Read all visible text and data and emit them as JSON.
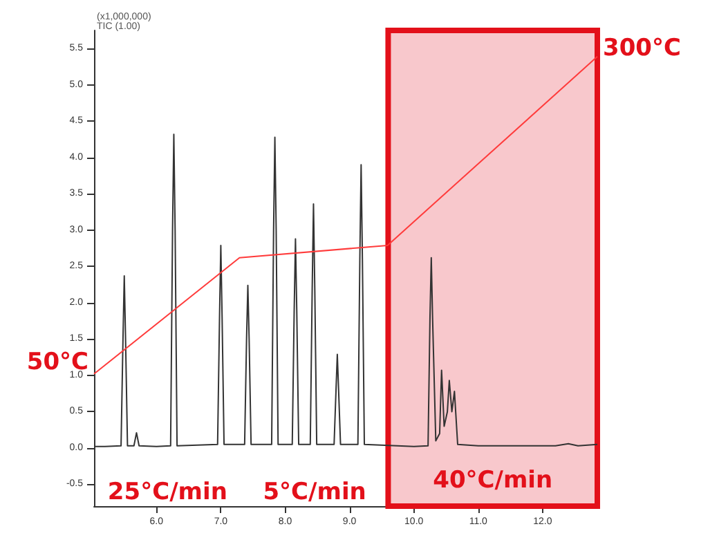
{
  "chart_data": {
    "type": "line",
    "xlim": [
      5.03,
      12.85
    ],
    "ylim": [
      -0.8,
      5.75
    ],
    "xticks": [
      {
        "value": 6,
        "label": "6.0"
      },
      {
        "value": 7,
        "label": "7.0"
      },
      {
        "value": 8,
        "label": "8.0"
      },
      {
        "value": 9,
        "label": "9.0"
      },
      {
        "value": 10,
        "label": "10.0"
      },
      {
        "value": 11,
        "label": "11.0"
      },
      {
        "value": 12,
        "label": "12.0"
      }
    ],
    "yticks": [
      {
        "value": -0.5,
        "label": "-0.5"
      },
      {
        "value": 0,
        "label": "0.0"
      },
      {
        "value": 0.5,
        "label": "0.5"
      },
      {
        "value": 1,
        "label": "1.0"
      },
      {
        "value": 1.5,
        "label": "1.5"
      },
      {
        "value": 2,
        "label": "2.0"
      },
      {
        "value": 2.5,
        "label": "2.5"
      },
      {
        "value": 3,
        "label": "3.0"
      },
      {
        "value": 3.5,
        "label": "3.5"
      },
      {
        "value": 4,
        "label": "4.0"
      },
      {
        "value": 4.5,
        "label": "4.5"
      },
      {
        "value": 5,
        "label": "5.0"
      },
      {
        "value": 5.5,
        "label": "5.5"
      }
    ],
    "series": [
      {
        "color": "#333333",
        "x": [
          5.03,
          5.2,
          5.45,
          5.48,
          5.5,
          5.52,
          5.55,
          5.65,
          5.69,
          5.73,
          6.0,
          6.22,
          6.25,
          6.27,
          6.29,
          6.32,
          6.95,
          6.98,
          7.0,
          7.02,
          7.05,
          7.37,
          7.4,
          7.42,
          7.44,
          7.47,
          7.79,
          7.82,
          7.84,
          7.86,
          7.89,
          8.11,
          8.14,
          8.16,
          8.18,
          8.21,
          8.39,
          8.42,
          8.44,
          8.46,
          8.49,
          8.76,
          8.79,
          8.81,
          8.83,
          8.86,
          9.13,
          9.16,
          9.18,
          9.2,
          9.23,
          10.0,
          10.22,
          10.25,
          10.27,
          10.29,
          10.34,
          10.4,
          10.43,
          10.47,
          10.52,
          10.55,
          10.59,
          10.63,
          10.68,
          11.0,
          12.2,
          12.4,
          12.55,
          12.85
        ],
        "values": [
          0.02,
          0.02,
          0.03,
          1.5,
          2.37,
          1.5,
          0.03,
          0.03,
          0.21,
          0.03,
          0.02,
          0.03,
          3.0,
          4.32,
          3.0,
          0.03,
          0.05,
          1.8,
          2.79,
          1.8,
          0.05,
          0.05,
          1.5,
          2.24,
          1.5,
          0.05,
          0.05,
          3.0,
          4.28,
          3.0,
          0.05,
          0.05,
          1.9,
          2.88,
          1.9,
          0.05,
          0.05,
          2.2,
          3.36,
          2.2,
          0.05,
          0.05,
          0.8,
          1.29,
          0.8,
          0.05,
          0.05,
          2.6,
          3.9,
          2.6,
          0.05,
          0.02,
          0.03,
          1.8,
          2.62,
          1.8,
          0.1,
          0.2,
          1.07,
          0.3,
          0.5,
          0.93,
          0.5,
          0.78,
          0.05,
          0.03,
          0.03,
          0.06,
          0.03,
          0.05
        ]
      },
      {
        "color": "#ff3b3b",
        "x": [
          5.03,
          7.29,
          9.59,
          12.85
        ],
        "values": [
          1.02,
          2.62,
          2.79,
          5.39
        ]
      }
    ],
    "bands": [
      {
        "axis": "x",
        "from": 9.6,
        "to": 12.85,
        "label": "40°C/min",
        "color": "#f8c8cc"
      }
    ],
    "annotations": [
      "(x1,000,000)",
      "TIC (1.00)",
      {
        "text": "50°C",
        "x": 5.03,
        "y": 1.02
      },
      {
        "text": "300°C",
        "x": 12.85,
        "y": 5.39
      },
      "25°C/min",
      "5°C/min"
    ],
    "grid": false,
    "marker": "none",
    "line_style": "solid"
  }
}
